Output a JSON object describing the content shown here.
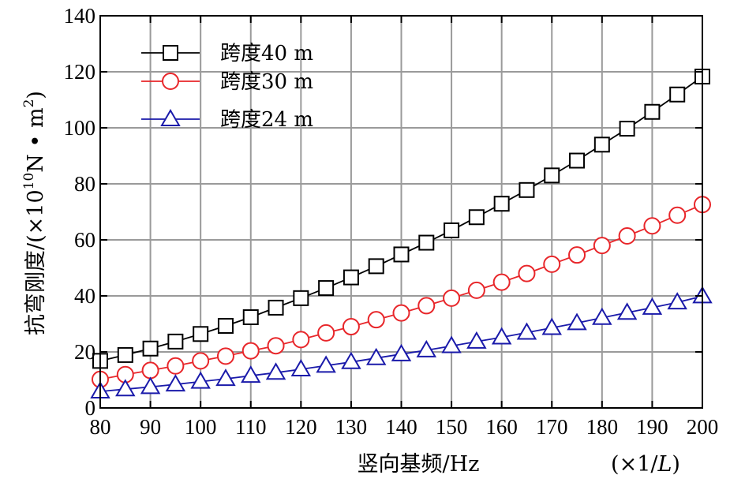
{
  "chart_data": {
    "type": "line",
    "x": [
      80,
      85,
      90,
      95,
      100,
      105,
      110,
      115,
      120,
      125,
      130,
      135,
      140,
      145,
      150,
      155,
      160,
      165,
      170,
      175,
      180,
      185,
      190,
      195,
      200
    ],
    "series": [
      {
        "name": "跨度40 m",
        "color": "#000000",
        "marker": "square",
        "values": [
          16.8,
          18.9,
          21.2,
          23.7,
          26.4,
          29.3,
          32.4,
          35.8,
          39.2,
          42.8,
          46.6,
          50.6,
          54.8,
          59.0,
          63.4,
          68.1,
          72.9,
          77.8,
          83.0,
          88.3,
          94.0,
          99.7,
          105.7,
          111.9,
          118.3
        ]
      },
      {
        "name": "跨度30 m",
        "color": "#e8262a",
        "marker": "circle",
        "values": [
          10.2,
          11.9,
          13.4,
          15.0,
          16.8,
          18.5,
          20.4,
          22.2,
          24.4,
          26.8,
          29.0,
          31.5,
          33.9,
          36.5,
          39.2,
          42.0,
          44.9,
          48.0,
          51.3,
          54.6,
          58.0,
          61.4,
          65.0,
          68.8,
          72.6
        ]
      },
      {
        "name": "跨度24 m",
        "color": "#1a1aaa",
        "marker": "triangle",
        "values": [
          5.9,
          6.7,
          7.5,
          8.4,
          9.4,
          10.4,
          11.5,
          12.6,
          13.8,
          15.1,
          16.4,
          17.8,
          19.2,
          20.6,
          22.1,
          23.7,
          25.2,
          26.9,
          28.6,
          30.3,
          32.2,
          34.0,
          35.8,
          37.7,
          39.9
        ]
      }
    ],
    "xlim": [
      80,
      200
    ],
    "ylim": [
      0,
      140
    ],
    "xticks": [
      80,
      90,
      100,
      110,
      120,
      130,
      140,
      150,
      160,
      170,
      180,
      190,
      200
    ],
    "yticks": [
      0,
      20,
      40,
      60,
      80,
      100,
      120,
      140
    ],
    "xlabel": "竖向基频/Hz",
    "x_unit_note": "(×1/L)",
    "ylabel_prefix": "抗弯刚度/(×10",
    "ylabel_exp": "10",
    "ylabel_mid": "N • m",
    "ylabel_sq": "2",
    "ylabel_suffix": ")",
    "grid": true,
    "legend_position": "top-left"
  }
}
